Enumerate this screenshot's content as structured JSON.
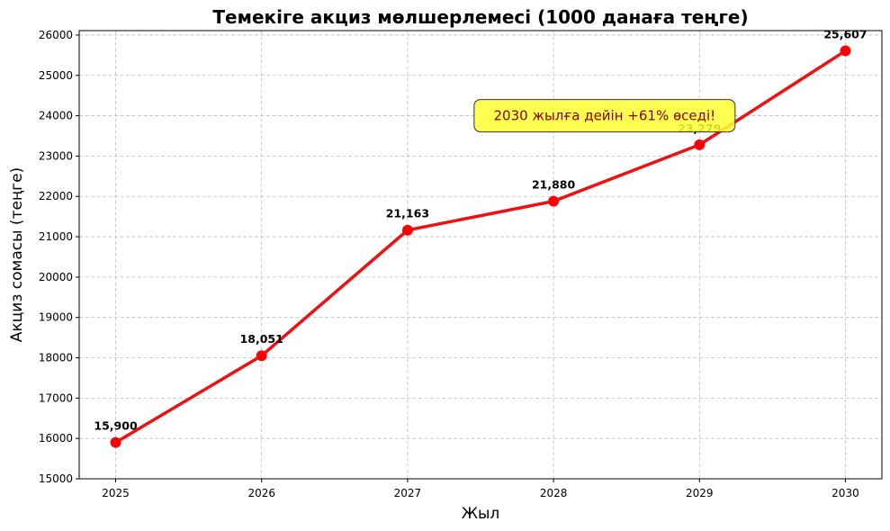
{
  "chart_data": {
    "type": "line",
    "title": "Темекіге акциз мөлшерлемесі (1000 данаға теңге)",
    "xlabel": "Жыл",
    "ylabel": "Акциз сомасы (теңге)",
    "x": [
      2025,
      2026,
      2027,
      2028,
      2029,
      2030
    ],
    "series": [
      {
        "name": "Акциз",
        "values": [
          15900,
          18051,
          21163,
          21880,
          23279,
          25607
        ],
        "color": "#ee1111"
      }
    ],
    "data_labels": [
      "15,900",
      "18,051",
      "21,163",
      "21,880",
      "23,279",
      "25,607"
    ],
    "xticks": [
      "2025",
      "2026",
      "2027",
      "2028",
      "2029",
      "2030"
    ],
    "yticks": [
      "15000",
      "16000",
      "17000",
      "18000",
      "19000",
      "20000",
      "21000",
      "22000",
      "23000",
      "24000",
      "25000",
      "26000"
    ],
    "xlim": [
      2024.75,
      2030.25
    ],
    "ylim": [
      15000,
      26110
    ],
    "grid": true,
    "annotation": {
      "text": "2030 жылға дейін +61% өседі!",
      "x": 2028.35,
      "y": 24000,
      "box_color": "#ffff33",
      "text_color": "#8b0000"
    }
  }
}
